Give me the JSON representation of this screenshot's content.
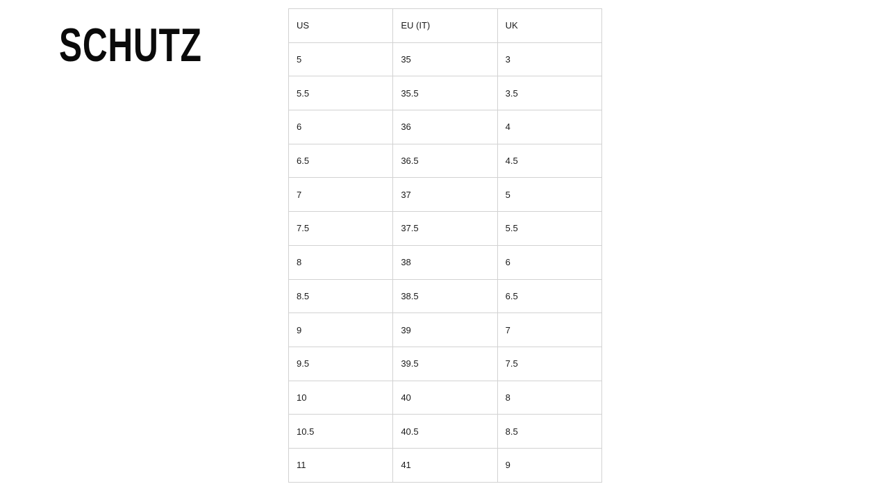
{
  "brand": {
    "logo_text": "SCHUTZ"
  },
  "size_chart": {
    "headers": [
      "US",
      "EU (IT)",
      "UK"
    ],
    "rows": [
      [
        "5",
        "35",
        "3"
      ],
      [
        "5.5",
        "35.5",
        "3.5"
      ],
      [
        "6",
        "36",
        "4"
      ],
      [
        "6.5",
        "36.5",
        "4.5"
      ],
      [
        "7",
        "37",
        "5"
      ],
      [
        "7.5",
        "37.5",
        "5.5"
      ],
      [
        "8",
        "38",
        "6"
      ],
      [
        "8.5",
        "38.5",
        "6.5"
      ],
      [
        "9",
        "39",
        "7"
      ],
      [
        "9.5",
        "39.5",
        "7.5"
      ],
      [
        "10",
        "40",
        "8"
      ],
      [
        "10.5",
        "40.5",
        "8.5"
      ],
      [
        "11",
        "41",
        "9"
      ]
    ]
  }
}
